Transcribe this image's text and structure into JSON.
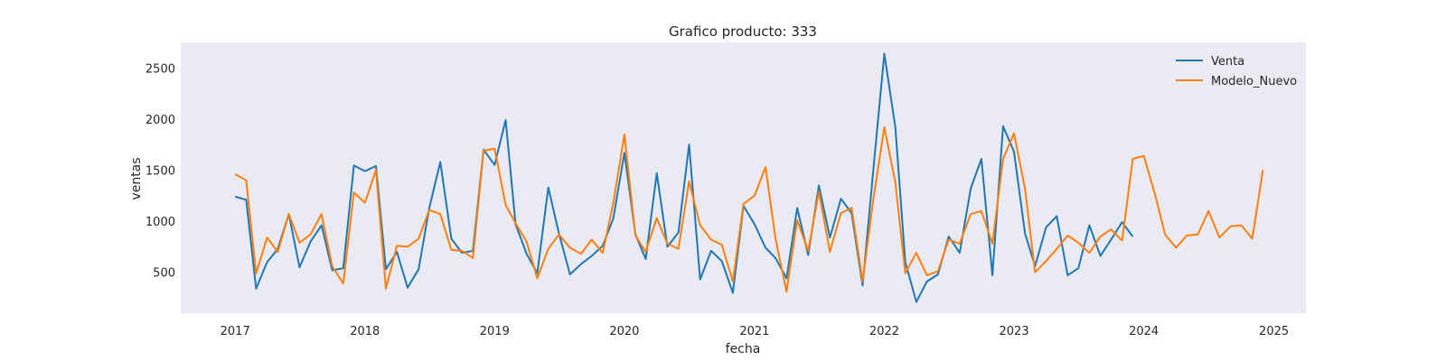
{
  "chart_data": {
    "type": "line",
    "title": "Grafico producto: 333",
    "xlabel": "fecha",
    "ylabel": "ventas",
    "x_axis": {
      "type": "date",
      "start": "2016-08-01",
      "end": "2025-04-01"
    },
    "ylim": [
      100,
      2750
    ],
    "xticks": [
      {
        "date": "2017-01-01",
        "label": "2017"
      },
      {
        "date": "2018-01-01",
        "label": "2018"
      },
      {
        "date": "2019-01-01",
        "label": "2019"
      },
      {
        "date": "2020-01-01",
        "label": "2020"
      },
      {
        "date": "2021-01-01",
        "label": "2021"
      },
      {
        "date": "2022-01-01",
        "label": "2022"
      },
      {
        "date": "2023-01-01",
        "label": "2023"
      },
      {
        "date": "2024-01-01",
        "label": "2024"
      },
      {
        "date": "2025-01-01",
        "label": "2025"
      }
    ],
    "yticks": [
      500,
      1000,
      1500,
      2000,
      2500
    ],
    "grid": false,
    "legend_position": "top-right",
    "background": "#eaeaf2",
    "series": [
      {
        "name": "Venta",
        "color": "#1f77b4",
        "start": "2017-01",
        "values": [
          1240,
          1210,
          340,
          600,
          730,
          1070,
          550,
          800,
          960,
          520,
          540,
          1545,
          1490,
          1540,
          530,
          700,
          350,
          530,
          1130,
          1580,
          830,
          690,
          710,
          1700,
          1550,
          1990,
          970,
          680,
          490,
          1330,
          880,
          480,
          580,
          660,
          760,
          1030,
          1670,
          870,
          630,
          1470,
          750,
          890,
          1750,
          430,
          710,
          610,
          300,
          1150,
          970,
          740,
          640,
          440,
          1130,
          670,
          1350,
          840,
          1220,
          1080,
          370,
          1500,
          2640,
          1920,
          600,
          210,
          410,
          480,
          850,
          690,
          1320,
          1610,
          470,
          1930,
          1680,
          880,
          560,
          940,
          1050,
          470,
          540,
          960,
          660,
          820,
          990,
          850
        ]
      },
      {
        "name": "Modelo_Nuevo",
        "color": "#ff7f0e",
        "start": "2017-01",
        "values": [
          1460,
          1400,
          490,
          840,
          700,
          1070,
          790,
          870,
          1070,
          560,
          390,
          1280,
          1180,
          1500,
          340,
          760,
          750,
          830,
          1110,
          1070,
          720,
          710,
          640,
          1690,
          1710,
          1160,
          980,
          800,
          440,
          730,
          870,
          740,
          680,
          820,
          690,
          1180,
          1850,
          860,
          700,
          1030,
          780,
          730,
          1390,
          960,
          820,
          770,
          410,
          1170,
          1250,
          1530,
          830,
          310,
          1010,
          710,
          1290,
          700,
          1080,
          1130,
          410,
          1210,
          1920,
          1380,
          490,
          690,
          470,
          510,
          820,
          780,
          1070,
          1100,
          780,
          1610,
          1860,
          1320,
          500,
          610,
          730,
          860,
          790,
          690,
          850,
          920,
          810,
          1610,
          1640,
          1270,
          870,
          740,
          860,
          870,
          1100,
          840,
          950,
          960,
          830,
          1500
        ]
      }
    ]
  }
}
